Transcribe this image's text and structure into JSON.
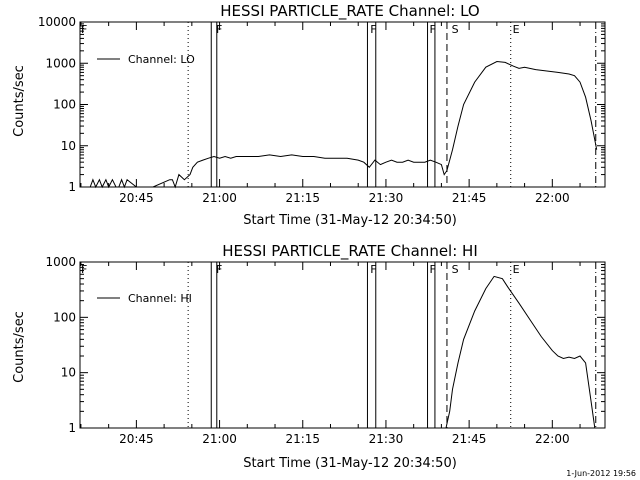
{
  "chart_data": [
    {
      "type": "line",
      "title": "HESSI PARTICLE_RATE Channel: LO",
      "xlabel": "Start Time (31-May-12 20:34:50)",
      "ylabel": "Counts/sec",
      "yscale": "log",
      "ylim": [
        1,
        10000
      ],
      "xlim": [
        "20:34:50",
        "22:09:30"
      ],
      "x_tick_labels": [
        "20:45",
        "21:00",
        "21:15",
        "21:30",
        "21:45",
        "22:00"
      ],
      "y_tick_labels": [
        "1",
        "10",
        "100",
        "1000",
        "10000"
      ],
      "legend": {
        "label": "Channel: LO",
        "placement": "top-left"
      },
      "grid": false,
      "series": [
        {
          "name": "Channel: LO",
          "x": [
            "20:34:50",
            "20:36:40",
            "20:37:10",
            "20:37:40",
            "20:38:20",
            "20:38:50",
            "20:39:30",
            "20:40:00",
            "20:40:40",
            "20:41:20",
            "20:41:50",
            "20:42:20",
            "20:42:50",
            "20:43:20",
            "20:45:00",
            "20:48:00",
            "20:51:00",
            "20:51:30",
            "20:52:00",
            "20:52:40",
            "20:53:40",
            "20:54:40",
            "20:55:10",
            "20:56:00",
            "20:57:00",
            "20:58:00",
            "20:59:00",
            "21:00:00",
            "21:01:00",
            "21:02:00",
            "21:03:00",
            "21:05:00",
            "21:07:00",
            "21:09:00",
            "21:11:00",
            "21:13:00",
            "21:15:00",
            "21:17:00",
            "21:19:00",
            "21:21:00",
            "21:23:00",
            "21:25:00",
            "21:26:00",
            "21:27:00",
            "21:28:00",
            "21:29:00",
            "21:30:00",
            "21:31:00",
            "21:32:00",
            "21:33:00",
            "21:34:00",
            "21:35:00",
            "21:36:00",
            "21:37:00",
            "21:38:00",
            "21:39:00",
            "21:40:00",
            "21:40:30",
            "21:41:00",
            "21:42:00",
            "21:43:00",
            "21:44:00",
            "21:46:00",
            "21:48:00",
            "21:50:00",
            "21:51:30",
            "21:53:00",
            "21:54:00",
            "21:55:00",
            "21:57:00",
            "21:59:00",
            "22:01:00",
            "22:03:00",
            "22:04:00",
            "22:05:00",
            "22:06:00",
            "22:07:00",
            "22:08:00"
          ],
          "y": [
            1,
            1,
            1.5,
            1,
            1.5,
            1,
            1.5,
            1,
            1.5,
            1,
            1,
            1.5,
            1,
            1.5,
            1,
            1,
            1.5,
            1.5,
            1,
            2,
            1.5,
            2,
            3,
            4,
            4.5,
            5,
            5.5,
            5,
            5.5,
            5,
            5.5,
            5.5,
            5.5,
            6,
            5.5,
            6,
            5.5,
            5.5,
            5,
            5,
            5,
            4.5,
            4,
            3,
            4.5,
            3.5,
            4,
            4.5,
            4,
            4,
            4.5,
            4,
            4,
            4,
            4.5,
            4,
            3.5,
            2,
            2.5,
            8,
            30,
            100,
            350,
            800,
            1100,
            1050,
            850,
            750,
            800,
            700,
            650,
            600,
            550,
            500,
            350,
            150,
            40,
            8
          ]
        }
      ],
      "markers": [
        {
          "label": "F",
          "style": "solid"
        },
        {
          "label": "F",
          "style": "solid"
        },
        {
          "label": "F",
          "style": "solid"
        },
        {
          "label": "S",
          "style": "dashed"
        },
        {
          "label": "E",
          "style": "dotted"
        }
      ]
    },
    {
      "type": "line",
      "title": "HESSI PARTICLE_RATE Channel: HI",
      "xlabel": "Start Time (31-May-12 20:34:50)",
      "ylabel": "Counts/sec",
      "yscale": "log",
      "ylim": [
        1,
        1000
      ],
      "xlim": [
        "20:34:50",
        "22:09:30"
      ],
      "x_tick_labels": [
        "20:45",
        "21:00",
        "21:15",
        "21:30",
        "21:45",
        "22:00"
      ],
      "y_tick_labels": [
        "1",
        "10",
        "100",
        "1000"
      ],
      "legend": {
        "label": "Channel: HI",
        "placement": "top-left"
      },
      "grid": false,
      "series": [
        {
          "name": "Channel: HI",
          "x": [
            "21:40:50",
            "21:41:30",
            "21:42:00",
            "21:43:00",
            "21:44:00",
            "21:46:00",
            "21:48:00",
            "21:49:30",
            "21:51:00",
            "21:52:00",
            "21:54:00",
            "21:56:00",
            "21:58:00",
            "22:00:00",
            "22:01:00",
            "22:02:00",
            "22:03:00",
            "22:04:00",
            "22:05:00",
            "22:06:00",
            "22:07:00",
            "22:07:40"
          ],
          "y": [
            1,
            2,
            5,
            15,
            40,
            130,
            330,
            550,
            500,
            350,
            180,
            90,
            45,
            25,
            20,
            18,
            19,
            18,
            20,
            15,
            3,
            1
          ]
        }
      ],
      "markers": [
        {
          "label": "F",
          "style": "solid"
        },
        {
          "label": "F",
          "style": "solid"
        },
        {
          "label": "F",
          "style": "solid"
        },
        {
          "label": "S",
          "style": "dashed"
        },
        {
          "label": "E",
          "style": "dotted"
        }
      ]
    }
  ],
  "footer": {
    "timestamp": "1-Jun-2012 19:56"
  }
}
